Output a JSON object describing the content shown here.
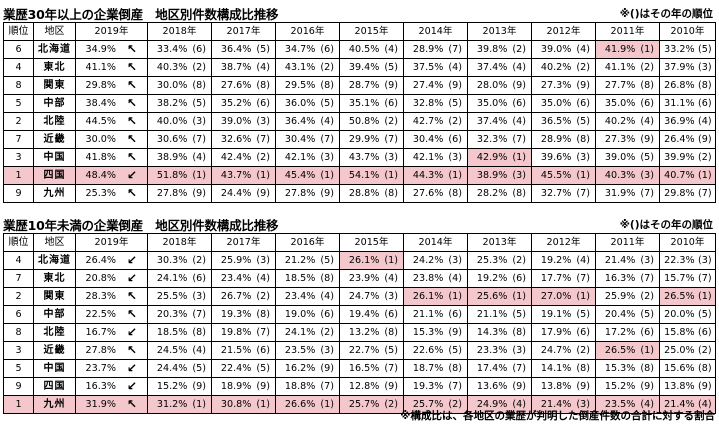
{
  "table1": {
    "title": "業歴30年以上の企業倒産　地区別件数構成比推移",
    "note": "※()はその年の順位",
    "headers": [
      "順位",
      "地区",
      "2019年",
      "2018年",
      "2017年",
      "2016年",
      "2015年",
      "2014年",
      "2013年",
      "2012年",
      "2011年",
      "2010年"
    ],
    "rows": [
      {
        "rank": "6",
        "region": "北海道",
        "arrow": "↖",
        "highlight_row": false,
        "cells": [
          [
            "34.9%",
            ""
          ],
          [
            "33.4%",
            "(6)"
          ],
          [
            "36.4%",
            "(5)"
          ],
          [
            "34.7%",
            "(6)"
          ],
          [
            "40.5%",
            "(4)"
          ],
          [
            "28.9%",
            "(7)"
          ],
          [
            "39.8%",
            "(2)"
          ],
          [
            "39.0%",
            "(4)"
          ],
          [
            "41.9%",
            "(1)"
          ],
          [
            "33.2%",
            "(5)"
          ]
        ],
        "hl": [
          8
        ]
      },
      {
        "rank": "4",
        "region": "東北",
        "arrow": "↖",
        "highlight_row": false,
        "cells": [
          [
            "41.1%",
            ""
          ],
          [
            "40.3%",
            "(2)"
          ],
          [
            "38.7%",
            "(4)"
          ],
          [
            "43.1%",
            "(2)"
          ],
          [
            "39.4%",
            "(5)"
          ],
          [
            "37.5%",
            "(4)"
          ],
          [
            "37.4%",
            "(4)"
          ],
          [
            "40.2%",
            "(2)"
          ],
          [
            "41.1%",
            "(2)"
          ],
          [
            "37.9%",
            "(3)"
          ]
        ],
        "hl": []
      },
      {
        "rank": "8",
        "region": "関東",
        "arrow": "↖",
        "highlight_row": false,
        "cells": [
          [
            "29.8%",
            ""
          ],
          [
            "30.0%",
            "(8)"
          ],
          [
            "27.6%",
            "(8)"
          ],
          [
            "29.5%",
            "(8)"
          ],
          [
            "28.7%",
            "(9)"
          ],
          [
            "27.4%",
            "(9)"
          ],
          [
            "28.0%",
            "(9)"
          ],
          [
            "27.3%",
            "(9)"
          ],
          [
            "27.7%",
            "(8)"
          ],
          [
            "26.8%",
            "(8)"
          ]
        ],
        "hl": []
      },
      {
        "rank": "5",
        "region": "中部",
        "arrow": "↖",
        "highlight_row": false,
        "cells": [
          [
            "38.4%",
            ""
          ],
          [
            "38.2%",
            "(5)"
          ],
          [
            "35.2%",
            "(6)"
          ],
          [
            "36.0%",
            "(5)"
          ],
          [
            "35.1%",
            "(6)"
          ],
          [
            "32.8%",
            "(5)"
          ],
          [
            "35.0%",
            "(6)"
          ],
          [
            "35.0%",
            "(6)"
          ],
          [
            "35.0%",
            "(6)"
          ],
          [
            "31.1%",
            "(6)"
          ]
        ],
        "hl": []
      },
      {
        "rank": "2",
        "region": "北陸",
        "arrow": "↖",
        "highlight_row": false,
        "cells": [
          [
            "44.5%",
            ""
          ],
          [
            "40.0%",
            "(3)"
          ],
          [
            "39.0%",
            "(3)"
          ],
          [
            "36.4%",
            "(4)"
          ],
          [
            "50.8%",
            "(2)"
          ],
          [
            "42.7%",
            "(2)"
          ],
          [
            "37.4%",
            "(4)"
          ],
          [
            "36.5%",
            "(5)"
          ],
          [
            "40.2%",
            "(4)"
          ],
          [
            "36.9%",
            "(4)"
          ]
        ],
        "hl": []
      },
      {
        "rank": "7",
        "region": "近畿",
        "arrow": "↖",
        "highlight_row": false,
        "cells": [
          [
            "30.0%",
            ""
          ],
          [
            "30.6%",
            "(7)"
          ],
          [
            "32.6%",
            "(7)"
          ],
          [
            "30.4%",
            "(7)"
          ],
          [
            "29.9%",
            "(7)"
          ],
          [
            "30.4%",
            "(6)"
          ],
          [
            "32.3%",
            "(7)"
          ],
          [
            "28.9%",
            "(8)"
          ],
          [
            "27.3%",
            "(9)"
          ],
          [
            "26.4%",
            "(9)"
          ]
        ],
        "hl": []
      },
      {
        "rank": "3",
        "region": "中国",
        "arrow": "↖",
        "highlight_row": false,
        "cells": [
          [
            "41.8%",
            ""
          ],
          [
            "38.9%",
            "(4)"
          ],
          [
            "42.4%",
            "(2)"
          ],
          [
            "42.1%",
            "(3)"
          ],
          [
            "43.7%",
            "(3)"
          ],
          [
            "42.1%",
            "(3)"
          ],
          [
            "42.9%",
            "(1)"
          ],
          [
            "39.6%",
            "(3)"
          ],
          [
            "39.0%",
            "(5)"
          ],
          [
            "39.9%",
            "(2)"
          ]
        ],
        "hl": [
          6
        ]
      },
      {
        "rank": "1",
        "region": "四国",
        "arrow": "↙",
        "highlight_row": true,
        "cells": [
          [
            "48.4%",
            ""
          ],
          [
            "51.8%",
            "(1)"
          ],
          [
            "43.7%",
            "(1)"
          ],
          [
            "45.4%",
            "(1)"
          ],
          [
            "54.1%",
            "(1)"
          ],
          [
            "44.3%",
            "(1)"
          ],
          [
            "38.9%",
            "(3)"
          ],
          [
            "45.5%",
            "(1)"
          ],
          [
            "40.3%",
            "(3)"
          ],
          [
            "40.7%",
            "(1)"
          ]
        ],
        "hl": []
      },
      {
        "rank": "9",
        "region": "九州",
        "arrow": "↖",
        "highlight_row": false,
        "cells": [
          [
            "25.3%",
            ""
          ],
          [
            "27.8%",
            "(9)"
          ],
          [
            "24.4%",
            "(9)"
          ],
          [
            "27.8%",
            "(9)"
          ],
          [
            "28.8%",
            "(8)"
          ],
          [
            "27.6%",
            "(8)"
          ],
          [
            "28.2%",
            "(8)"
          ],
          [
            "32.7%",
            "(7)"
          ],
          [
            "31.9%",
            "(7)"
          ],
          [
            "29.8%",
            "(7)"
          ]
        ],
        "hl": []
      }
    ]
  },
  "table2": {
    "title": "業歴10年未満の企業倒産　地区別件数構成比推移",
    "note": "※()はその年の順位",
    "headers": [
      "順位",
      "地区",
      "2019年",
      "2018年",
      "2017年",
      "2016年",
      "2015年",
      "2014年",
      "2013年",
      "2012年",
      "2011年",
      "2010年"
    ],
    "rows": [
      {
        "rank": "4",
        "region": "北海道",
        "arrow": "↙",
        "highlight_row": false,
        "cells": [
          [
            "26.4%",
            ""
          ],
          [
            "30.3%",
            "(2)"
          ],
          [
            "25.9%",
            "(3)"
          ],
          [
            "21.2%",
            "(5)"
          ],
          [
            "26.1%",
            "(1)"
          ],
          [
            "24.2%",
            "(3)"
          ],
          [
            "25.3%",
            "(2)"
          ],
          [
            "19.2%",
            "(4)"
          ],
          [
            "21.4%",
            "(3)"
          ],
          [
            "22.3%",
            "(3)"
          ]
        ],
        "hl": [
          4
        ]
      },
      {
        "rank": "7",
        "region": "東北",
        "arrow": "↙",
        "highlight_row": false,
        "cells": [
          [
            "20.8%",
            ""
          ],
          [
            "24.1%",
            "(6)"
          ],
          [
            "23.4%",
            "(4)"
          ],
          [
            "18.5%",
            "(8)"
          ],
          [
            "23.9%",
            "(4)"
          ],
          [
            "23.8%",
            "(4)"
          ],
          [
            "19.2%",
            "(6)"
          ],
          [
            "17.7%",
            "(7)"
          ],
          [
            "16.3%",
            "(7)"
          ],
          [
            "15.7%",
            "(7)"
          ]
        ],
        "hl": []
      },
      {
        "rank": "2",
        "region": "関東",
        "arrow": "↖",
        "highlight_row": false,
        "cells": [
          [
            "28.3%",
            ""
          ],
          [
            "25.5%",
            "(3)"
          ],
          [
            "26.7%",
            "(2)"
          ],
          [
            "23.4%",
            "(4)"
          ],
          [
            "24.7%",
            "(3)"
          ],
          [
            "26.1%",
            "(1)"
          ],
          [
            "25.6%",
            "(1)"
          ],
          [
            "27.0%",
            "(1)"
          ],
          [
            "25.9%",
            "(2)"
          ],
          [
            "26.5%",
            "(1)"
          ]
        ],
        "hl": [
          5,
          6,
          7,
          9
        ]
      },
      {
        "rank": "6",
        "region": "中部",
        "arrow": "↖",
        "highlight_row": false,
        "cells": [
          [
            "22.5%",
            ""
          ],
          [
            "20.3%",
            "(7)"
          ],
          [
            "19.3%",
            "(8)"
          ],
          [
            "19.0%",
            "(6)"
          ],
          [
            "19.4%",
            "(6)"
          ],
          [
            "21.1%",
            "(6)"
          ],
          [
            "21.1%",
            "(5)"
          ],
          [
            "19.1%",
            "(5)"
          ],
          [
            "20.4%",
            "(5)"
          ],
          [
            "20.0%",
            "(5)"
          ]
        ],
        "hl": []
      },
      {
        "rank": "8",
        "region": "北陸",
        "arrow": "↙",
        "highlight_row": false,
        "cells": [
          [
            "16.7%",
            ""
          ],
          [
            "18.5%",
            "(8)"
          ],
          [
            "19.8%",
            "(7)"
          ],
          [
            "24.1%",
            "(2)"
          ],
          [
            "13.2%",
            "(8)"
          ],
          [
            "15.3%",
            "(9)"
          ],
          [
            "14.3%",
            "(8)"
          ],
          [
            "17.9%",
            "(6)"
          ],
          [
            "17.2%",
            "(6)"
          ],
          [
            "15.8%",
            "(6)"
          ]
        ],
        "hl": []
      },
      {
        "rank": "3",
        "region": "近畿",
        "arrow": "↖",
        "highlight_row": false,
        "cells": [
          [
            "27.8%",
            ""
          ],
          [
            "24.5%",
            "(4)"
          ],
          [
            "21.5%",
            "(6)"
          ],
          [
            "23.5%",
            "(3)"
          ],
          [
            "22.7%",
            "(5)"
          ],
          [
            "22.6%",
            "(5)"
          ],
          [
            "23.3%",
            "(3)"
          ],
          [
            "24.7%",
            "(2)"
          ],
          [
            "26.5%",
            "(1)"
          ],
          [
            "25.0%",
            "(2)"
          ]
        ],
        "hl": [
          8
        ]
      },
      {
        "rank": "5",
        "region": "中国",
        "arrow": "↙",
        "highlight_row": false,
        "cells": [
          [
            "23.7%",
            ""
          ],
          [
            "24.4%",
            "(5)"
          ],
          [
            "22.4%",
            "(5)"
          ],
          [
            "16.2%",
            "(9)"
          ],
          [
            "16.5%",
            "(7)"
          ],
          [
            "18.7%",
            "(8)"
          ],
          [
            "17.4%",
            "(7)"
          ],
          [
            "14.1%",
            "(8)"
          ],
          [
            "15.3%",
            "(8)"
          ],
          [
            "15.6%",
            "(8)"
          ]
        ],
        "hl": []
      },
      {
        "rank": "9",
        "region": "四国",
        "arrow": "↙",
        "highlight_row": false,
        "cells": [
          [
            "16.3%",
            ""
          ],
          [
            "15.2%",
            "(9)"
          ],
          [
            "18.9%",
            "(9)"
          ],
          [
            "18.8%",
            "(7)"
          ],
          [
            "12.8%",
            "(9)"
          ],
          [
            "19.3%",
            "(7)"
          ],
          [
            "13.6%",
            "(9)"
          ],
          [
            "13.8%",
            "(9)"
          ],
          [
            "15.2%",
            "(9)"
          ],
          [
            "13.8%",
            "(9)"
          ]
        ],
        "hl": []
      },
      {
        "rank": "1",
        "region": "九州",
        "arrow": "↖",
        "highlight_row": true,
        "cells": [
          [
            "31.9%",
            ""
          ],
          [
            "31.2%",
            "(1)"
          ],
          [
            "30.8%",
            "(1)"
          ],
          [
            "26.6%",
            "(1)"
          ],
          [
            "25.7%",
            "(2)"
          ],
          [
            "25.7%",
            "(2)"
          ],
          [
            "24.9%",
            "(4)"
          ],
          [
            "21.4%",
            "(3)"
          ],
          [
            "23.5%",
            "(4)"
          ],
          [
            "21.4%",
            "(4)"
          ]
        ],
        "hl": []
      }
    ]
  },
  "footnote": "※構成比は、各地区の業歴が判明した倒産件数の合計に対する割合",
  "colors": {
    "highlight": "#f4c7cc"
  }
}
